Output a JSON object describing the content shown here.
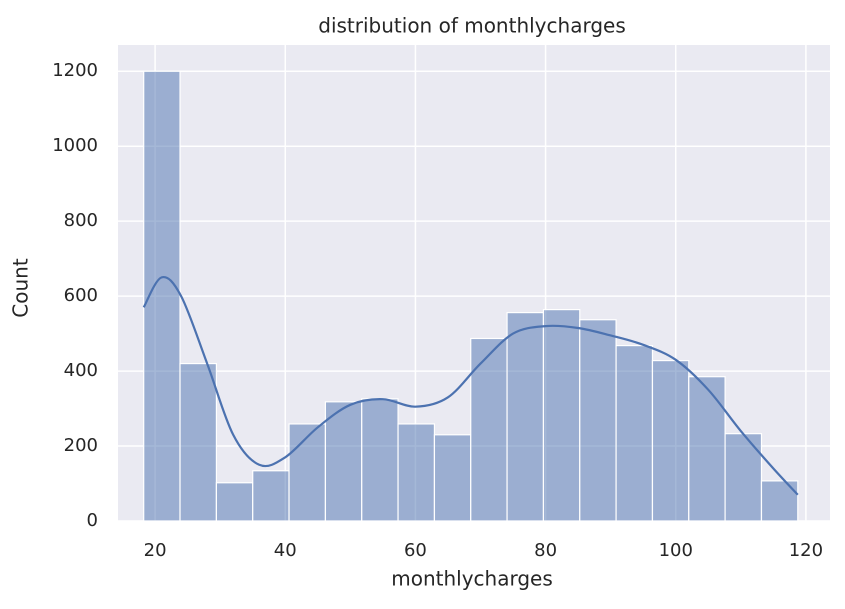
{
  "chart_data": {
    "type": "histogram",
    "title": "distribution of monthlycharges",
    "x_label": "monthlycharges",
    "y_label": "Count",
    "color": "#4c72b0",
    "bins": [
      18.25,
      23.83,
      29.42,
      35.0,
      40.58,
      46.17,
      51.75,
      57.33,
      62.92,
      68.5,
      74.08,
      79.67,
      85.25,
      90.83,
      96.42,
      102.0,
      107.58,
      113.17,
      118.75
    ],
    "values": [
      1200,
      420,
      102,
      134,
      259,
      318,
      326,
      259,
      230,
      487,
      556,
      564,
      537,
      468,
      428,
      385,
      233,
      107
    ],
    "kde": {
      "x": [
        18.25,
        21,
        24,
        28,
        32,
        36,
        40,
        45,
        50,
        55,
        60,
        65,
        70,
        75,
        80,
        85,
        90,
        95,
        100,
        105,
        110,
        115,
        118.75
      ],
      "values": [
        570,
        650,
        600,
        420,
        230,
        150,
        170,
        250,
        310,
        325,
        305,
        330,
        420,
        500,
        520,
        515,
        495,
        470,
        430,
        350,
        240,
        140,
        70
      ]
    },
    "xlim": [
      14.3,
      123.7
    ],
    "ylim": [
      0,
      1270
    ],
    "xticks": [
      20,
      40,
      60,
      80,
      100,
      120
    ],
    "yticks": [
      0,
      200,
      400,
      600,
      800,
      1000,
      1200
    ],
    "grid": true
  }
}
